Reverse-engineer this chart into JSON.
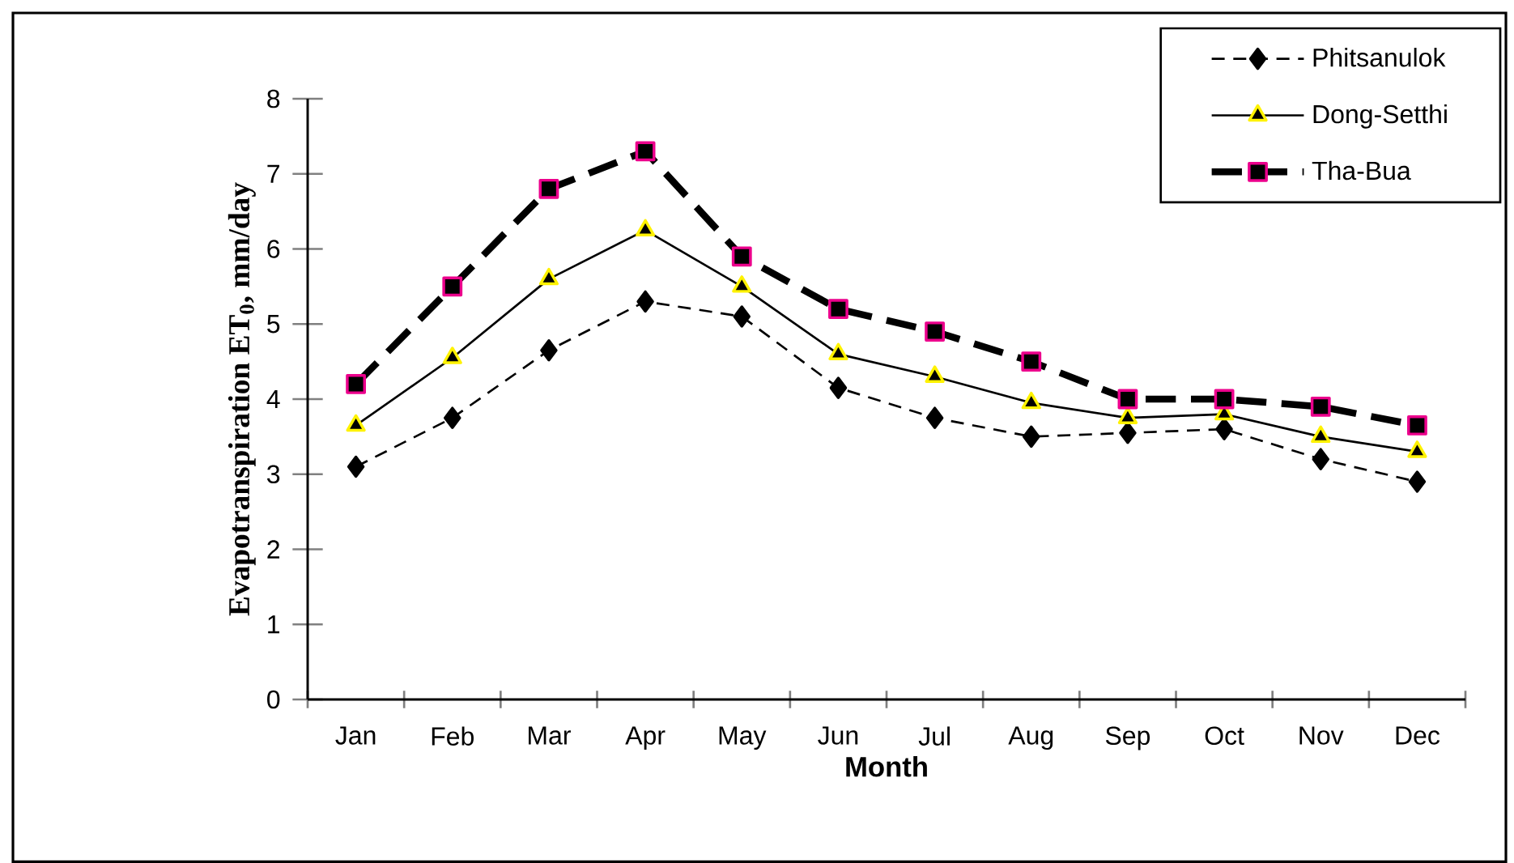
{
  "chart_data": {
    "type": "line",
    "xlabel": "Month",
    "ylabel": "Evapotranspiration ET$_{0}$, mm/day",
    "categories": [
      "Jan",
      "Feb",
      "Mar",
      "Apr",
      "May",
      "Jun",
      "Jul",
      "Aug",
      "Sep",
      "Oct",
      "Nov",
      "Dec"
    ],
    "series": [
      {
        "name": "Phitsanulok",
        "color": "#000000",
        "marker": "diamond",
        "line_style": "dashed",
        "values": [
          3.1,
          3.75,
          4.65,
          5.3,
          5.1,
          4.15,
          3.75,
          3.5,
          3.55,
          3.6,
          3.2,
          2.9
        ]
      },
      {
        "name": "Dong-Setthi",
        "color": "#000000",
        "marker": "triangle",
        "line_style": "solid",
        "values": [
          3.65,
          4.55,
          5.6,
          6.25,
          5.5,
          4.6,
          4.3,
          3.95,
          3.75,
          3.8,
          3.5,
          3.3
        ]
      },
      {
        "name": "Tha-Bua",
        "color": "#000000",
        "marker": "square",
        "line_style": "dashed",
        "values": [
          4.2,
          5.5,
          6.8,
          7.3,
          5.9,
          5.2,
          4.9,
          4.5,
          4.0,
          4.0,
          3.9,
          3.65
        ]
      }
    ],
    "ylim": [
      0,
      8
    ],
    "yticks": [
      0,
      1,
      2,
      3,
      4,
      5,
      6,
      7,
      8
    ],
    "grid": false,
    "legend": "top right"
  }
}
